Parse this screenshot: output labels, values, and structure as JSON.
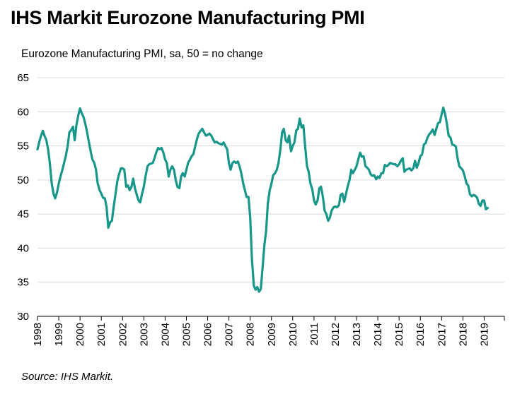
{
  "title": "IHS Markit Eurozone Manufacturing PMI",
  "subtitle": "Eurozone Manufacturing PMI, sa, 50 = no change",
  "source": "Source: IHS Markit.",
  "colors": {
    "line": "#16978a",
    "grid": "#d9d9d9",
    "axis": "#000000"
  },
  "chart_data": {
    "type": "line",
    "title": "IHS Markit Eurozone Manufacturing PMI",
    "ylabel": "Eurozone Manufacturing PMI, sa, 50 = no change",
    "xlabel": "",
    "ylim": [
      30,
      65
    ],
    "xlim": [
      1998.0,
      2019.95
    ],
    "y_ticks": [
      30,
      35,
      40,
      45,
      50,
      55,
      60,
      65
    ],
    "x_ticks": [
      "1998",
      "1999",
      "2000",
      "2001",
      "2002",
      "2003",
      "2004",
      "2005",
      "2006",
      "2007",
      "2008",
      "2009",
      "2010",
      "2011",
      "2012",
      "2013",
      "2014",
      "2015",
      "2016",
      "2017",
      "2018",
      "2019"
    ],
    "grid": "horizontal",
    "series": [
      {
        "name": "Eurozone Manufacturing PMI",
        "points": [
          [
            1998.0,
            54.5
          ],
          [
            1998.08,
            55.5
          ],
          [
            1998.17,
            56.5
          ],
          [
            1998.25,
            57.2
          ],
          [
            1998.33,
            56.5
          ],
          [
            1998.42,
            55.8
          ],
          [
            1998.5,
            54.5
          ],
          [
            1998.58,
            52.5
          ],
          [
            1998.67,
            49.5
          ],
          [
            1998.75,
            48.0
          ],
          [
            1998.83,
            47.3
          ],
          [
            1998.92,
            48.2
          ],
          [
            1999.0,
            49.5
          ],
          [
            1999.08,
            50.5
          ],
          [
            1999.17,
            51.5
          ],
          [
            1999.25,
            52.5
          ],
          [
            1999.33,
            53.5
          ],
          [
            1999.42,
            55.0
          ],
          [
            1999.5,
            57.0
          ],
          [
            1999.58,
            57.3
          ],
          [
            1999.67,
            57.8
          ],
          [
            1999.75,
            55.8
          ],
          [
            1999.83,
            58.0
          ],
          [
            1999.92,
            59.5
          ],
          [
            2000.0,
            60.5
          ],
          [
            2000.08,
            59.8
          ],
          [
            2000.17,
            59.2
          ],
          [
            2000.25,
            58.2
          ],
          [
            2000.33,
            57.0
          ],
          [
            2000.42,
            55.5
          ],
          [
            2000.5,
            54.2
          ],
          [
            2000.58,
            53.0
          ],
          [
            2000.67,
            52.5
          ],
          [
            2000.75,
            51.5
          ],
          [
            2000.83,
            49.5
          ],
          [
            2000.92,
            48.5
          ],
          [
            2001.0,
            48.0
          ],
          [
            2001.08,
            47.4
          ],
          [
            2001.17,
            47.3
          ],
          [
            2001.25,
            46.0
          ],
          [
            2001.33,
            43.0
          ],
          [
            2001.42,
            43.8
          ],
          [
            2001.5,
            44.0
          ],
          [
            2001.58,
            46.0
          ],
          [
            2001.67,
            48.0
          ],
          [
            2001.75,
            49.8
          ],
          [
            2001.83,
            50.8
          ],
          [
            2001.92,
            51.7
          ],
          [
            2002.0,
            51.7
          ],
          [
            2002.08,
            51.5
          ],
          [
            2002.17,
            49.0
          ],
          [
            2002.25,
            49.2
          ],
          [
            2002.33,
            48.5
          ],
          [
            2002.42,
            49.0
          ],
          [
            2002.5,
            50.2
          ],
          [
            2002.58,
            48.8
          ],
          [
            2002.67,
            47.8
          ],
          [
            2002.75,
            47.0
          ],
          [
            2002.83,
            46.7
          ],
          [
            2002.92,
            48.0
          ],
          [
            2003.0,
            49.0
          ],
          [
            2003.08,
            50.5
          ],
          [
            2003.17,
            52.0
          ],
          [
            2003.25,
            52.3
          ],
          [
            2003.33,
            52.4
          ],
          [
            2003.42,
            52.5
          ],
          [
            2003.5,
            53.2
          ],
          [
            2003.58,
            54.0
          ],
          [
            2003.67,
            54.7
          ],
          [
            2003.75,
            54.5
          ],
          [
            2003.83,
            54.7
          ],
          [
            2003.92,
            54.0
          ],
          [
            2004.0,
            53.0
          ],
          [
            2004.08,
            52.5
          ],
          [
            2004.17,
            50.5
          ],
          [
            2004.25,
            51.5
          ],
          [
            2004.33,
            52.0
          ],
          [
            2004.42,
            51.5
          ],
          [
            2004.5,
            50.0
          ],
          [
            2004.58,
            49.0
          ],
          [
            2004.67,
            48.8
          ],
          [
            2004.75,
            50.5
          ],
          [
            2004.83,
            51.0
          ],
          [
            2004.92,
            50.5
          ],
          [
            2005.0,
            51.5
          ],
          [
            2005.08,
            52.5
          ],
          [
            2005.17,
            53.0
          ],
          [
            2005.25,
            53.5
          ],
          [
            2005.33,
            53.8
          ],
          [
            2005.42,
            55.0
          ],
          [
            2005.5,
            56.0
          ],
          [
            2005.58,
            56.8
          ],
          [
            2005.67,
            57.2
          ],
          [
            2005.75,
            57.5
          ],
          [
            2005.83,
            57.0
          ],
          [
            2005.92,
            56.5
          ],
          [
            2006.0,
            56.6
          ],
          [
            2006.08,
            56.8
          ],
          [
            2006.17,
            56.5
          ],
          [
            2006.25,
            56.0
          ],
          [
            2006.33,
            55.5
          ],
          [
            2006.42,
            55.6
          ],
          [
            2006.5,
            55.4
          ],
          [
            2006.58,
            55.3
          ],
          [
            2006.67,
            55.2
          ],
          [
            2006.75,
            55.5
          ],
          [
            2006.83,
            55.0
          ],
          [
            2006.92,
            54.5
          ],
          [
            2007.0,
            52.5
          ],
          [
            2007.08,
            51.5
          ],
          [
            2007.17,
            52.5
          ],
          [
            2007.25,
            52.7
          ],
          [
            2007.33,
            52.5
          ],
          [
            2007.42,
            52.7
          ],
          [
            2007.5,
            52.0
          ],
          [
            2007.58,
            51.0
          ],
          [
            2007.67,
            49.5
          ],
          [
            2007.75,
            48.5
          ],
          [
            2007.83,
            47.5
          ],
          [
            2007.92,
            47.5
          ],
          [
            2008.0,
            44.5
          ],
          [
            2008.08,
            38.5
          ],
          [
            2008.17,
            34.5
          ],
          [
            2008.25,
            33.9
          ],
          [
            2008.33,
            34.3
          ],
          [
            2008.42,
            33.6
          ],
          [
            2008.5,
            34.0
          ],
          [
            2008.58,
            37.0
          ],
          [
            2008.67,
            40.5
          ],
          [
            2008.75,
            42.5
          ],
          [
            2008.83,
            46.5
          ],
          [
            2008.92,
            48.5
          ],
          [
            2009.0,
            49.5
          ],
          [
            2009.08,
            50.7
          ],
          [
            2009.17,
            51.0
          ],
          [
            2009.25,
            51.5
          ],
          [
            2009.33,
            52.5
          ],
          [
            2009.42,
            54.5
          ],
          [
            2009.5,
            57.0
          ],
          [
            2009.58,
            57.5
          ],
          [
            2009.67,
            55.8
          ],
          [
            2009.75,
            55.5
          ],
          [
            2009.83,
            56.5
          ],
          [
            2009.92,
            54.2
          ],
          [
            2010.0,
            55.0
          ],
          [
            2010.08,
            55.5
          ],
          [
            2010.17,
            57.3
          ],
          [
            2010.25,
            57.5
          ],
          [
            2010.33,
            59.0
          ],
          [
            2010.42,
            57.7
          ],
          [
            2010.5,
            58.0
          ],
          [
            2010.58,
            55.0
          ],
          [
            2010.67,
            52.0
          ],
          [
            2010.75,
            51.2
          ],
          [
            2010.83,
            49.5
          ],
          [
            2010.92,
            48.6
          ],
          [
            2011.0,
            47.0
          ],
          [
            2011.08,
            46.4
          ],
          [
            2011.17,
            47.0
          ],
          [
            2011.25,
            48.8
          ],
          [
            2011.33,
            49.0
          ],
          [
            2011.42,
            47.5
          ],
          [
            2011.5,
            45.5
          ],
          [
            2011.58,
            45.0
          ],
          [
            2011.67,
            44.0
          ],
          [
            2011.75,
            44.5
          ],
          [
            2011.83,
            45.5
          ],
          [
            2011.92,
            46.0
          ],
          [
            2012.0,
            46.1
          ],
          [
            2012.08,
            46.0
          ],
          [
            2012.17,
            46.3
          ],
          [
            2012.25,
            47.8
          ],
          [
            2012.33,
            48.0
          ],
          [
            2012.42,
            46.8
          ],
          [
            2012.5,
            47.9
          ],
          [
            2012.58,
            49.0
          ],
          [
            2012.67,
            50.0
          ],
          [
            2012.75,
            51.5
          ],
          [
            2012.83,
            51.0
          ],
          [
            2012.92,
            51.5
          ],
          [
            2013.0,
            52.0
          ],
          [
            2013.08,
            53.0
          ],
          [
            2013.17,
            54.0
          ],
          [
            2013.25,
            53.4
          ],
          [
            2013.33,
            53.5
          ],
          [
            2013.42,
            52.0
          ],
          [
            2013.5,
            51.8
          ],
          [
            2013.58,
            51.5
          ],
          [
            2013.67,
            50.8
          ],
          [
            2013.75,
            50.6
          ],
          [
            2013.83,
            50.7
          ],
          [
            2013.92,
            50.1
          ],
          [
            2014.0,
            50.5
          ],
          [
            2014.08,
            50.3
          ],
          [
            2014.17,
            51.0
          ],
          [
            2014.25,
            51.0
          ],
          [
            2014.33,
            52.2
          ],
          [
            2014.42,
            52.0
          ],
          [
            2014.5,
            52.2
          ],
          [
            2014.58,
            52.5
          ],
          [
            2014.67,
            52.4
          ],
          [
            2014.75,
            52.3
          ],
          [
            2014.83,
            52.3
          ],
          [
            2014.92,
            52.0
          ],
          [
            2015.0,
            52.3
          ],
          [
            2015.08,
            52.8
          ],
          [
            2015.17,
            53.2
          ],
          [
            2015.25,
            51.2
          ],
          [
            2015.33,
            51.5
          ],
          [
            2015.42,
            51.6
          ],
          [
            2015.5,
            51.7
          ],
          [
            2015.58,
            51.4
          ],
          [
            2015.67,
            51.7
          ],
          [
            2015.75,
            52.8
          ],
          [
            2015.83,
            51.8
          ],
          [
            2015.92,
            52.5
          ],
          [
            2016.0,
            53.5
          ],
          [
            2016.08,
            53.7
          ],
          [
            2016.17,
            55.2
          ],
          [
            2016.25,
            55.4
          ],
          [
            2016.33,
            56.2
          ],
          [
            2016.42,
            56.7
          ],
          [
            2016.5,
            57.0
          ],
          [
            2016.58,
            57.4
          ],
          [
            2016.67,
            56.6
          ],
          [
            2016.75,
            57.5
          ],
          [
            2016.83,
            58.3
          ],
          [
            2016.92,
            58.5
          ],
          [
            2017.0,
            59.6
          ],
          [
            2017.08,
            60.6
          ],
          [
            2017.17,
            59.6
          ],
          [
            2017.25,
            58.2
          ],
          [
            2017.33,
            56.5
          ],
          [
            2017.42,
            56.2
          ],
          [
            2017.5,
            55.2
          ],
          [
            2017.58,
            55.1
          ],
          [
            2017.67,
            54.9
          ],
          [
            2017.75,
            53.2
          ],
          [
            2017.83,
            52.0
          ],
          [
            2017.92,
            51.7
          ],
          [
            2018.0,
            51.4
          ],
          [
            2018.08,
            50.6
          ],
          [
            2018.17,
            49.5
          ],
          [
            2018.25,
            49.2
          ],
          [
            2018.33,
            47.9
          ],
          [
            2018.42,
            47.6
          ],
          [
            2018.5,
            47.8
          ],
          [
            2018.58,
            47.7
          ],
          [
            2018.67,
            47.4
          ],
          [
            2018.75,
            46.5
          ],
          [
            2018.83,
            46.2
          ],
          [
            2018.92,
            47.0
          ],
          [
            2019.0,
            47.0
          ],
          [
            2019.08,
            45.7
          ],
          [
            2019.17,
            45.9
          ]
        ]
      }
    ]
  }
}
